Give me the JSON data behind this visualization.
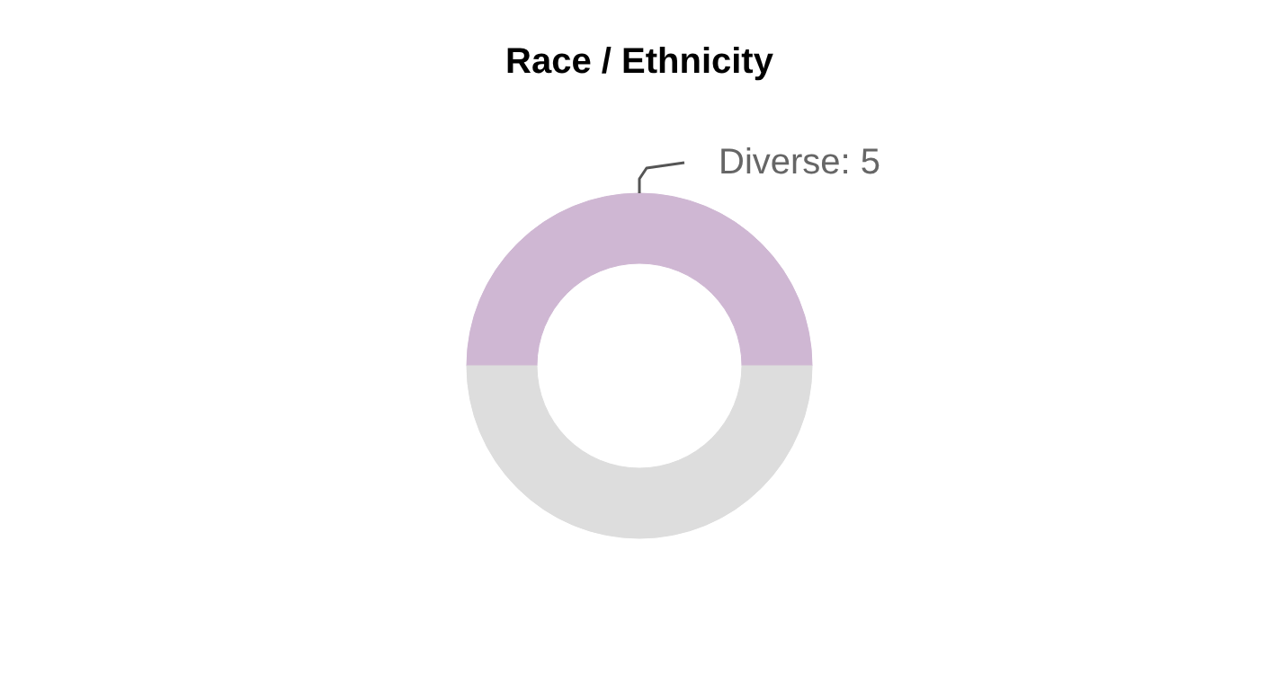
{
  "chart_data": {
    "type": "donut",
    "title": "Race / Ethnicity",
    "categories": [
      "Diverse",
      null
    ],
    "values": [
      5,
      5
    ],
    "colors": [
      "#cfb7d3",
      "#dddddd"
    ],
    "value_labels": [
      "5",
      null
    ]
  }
}
